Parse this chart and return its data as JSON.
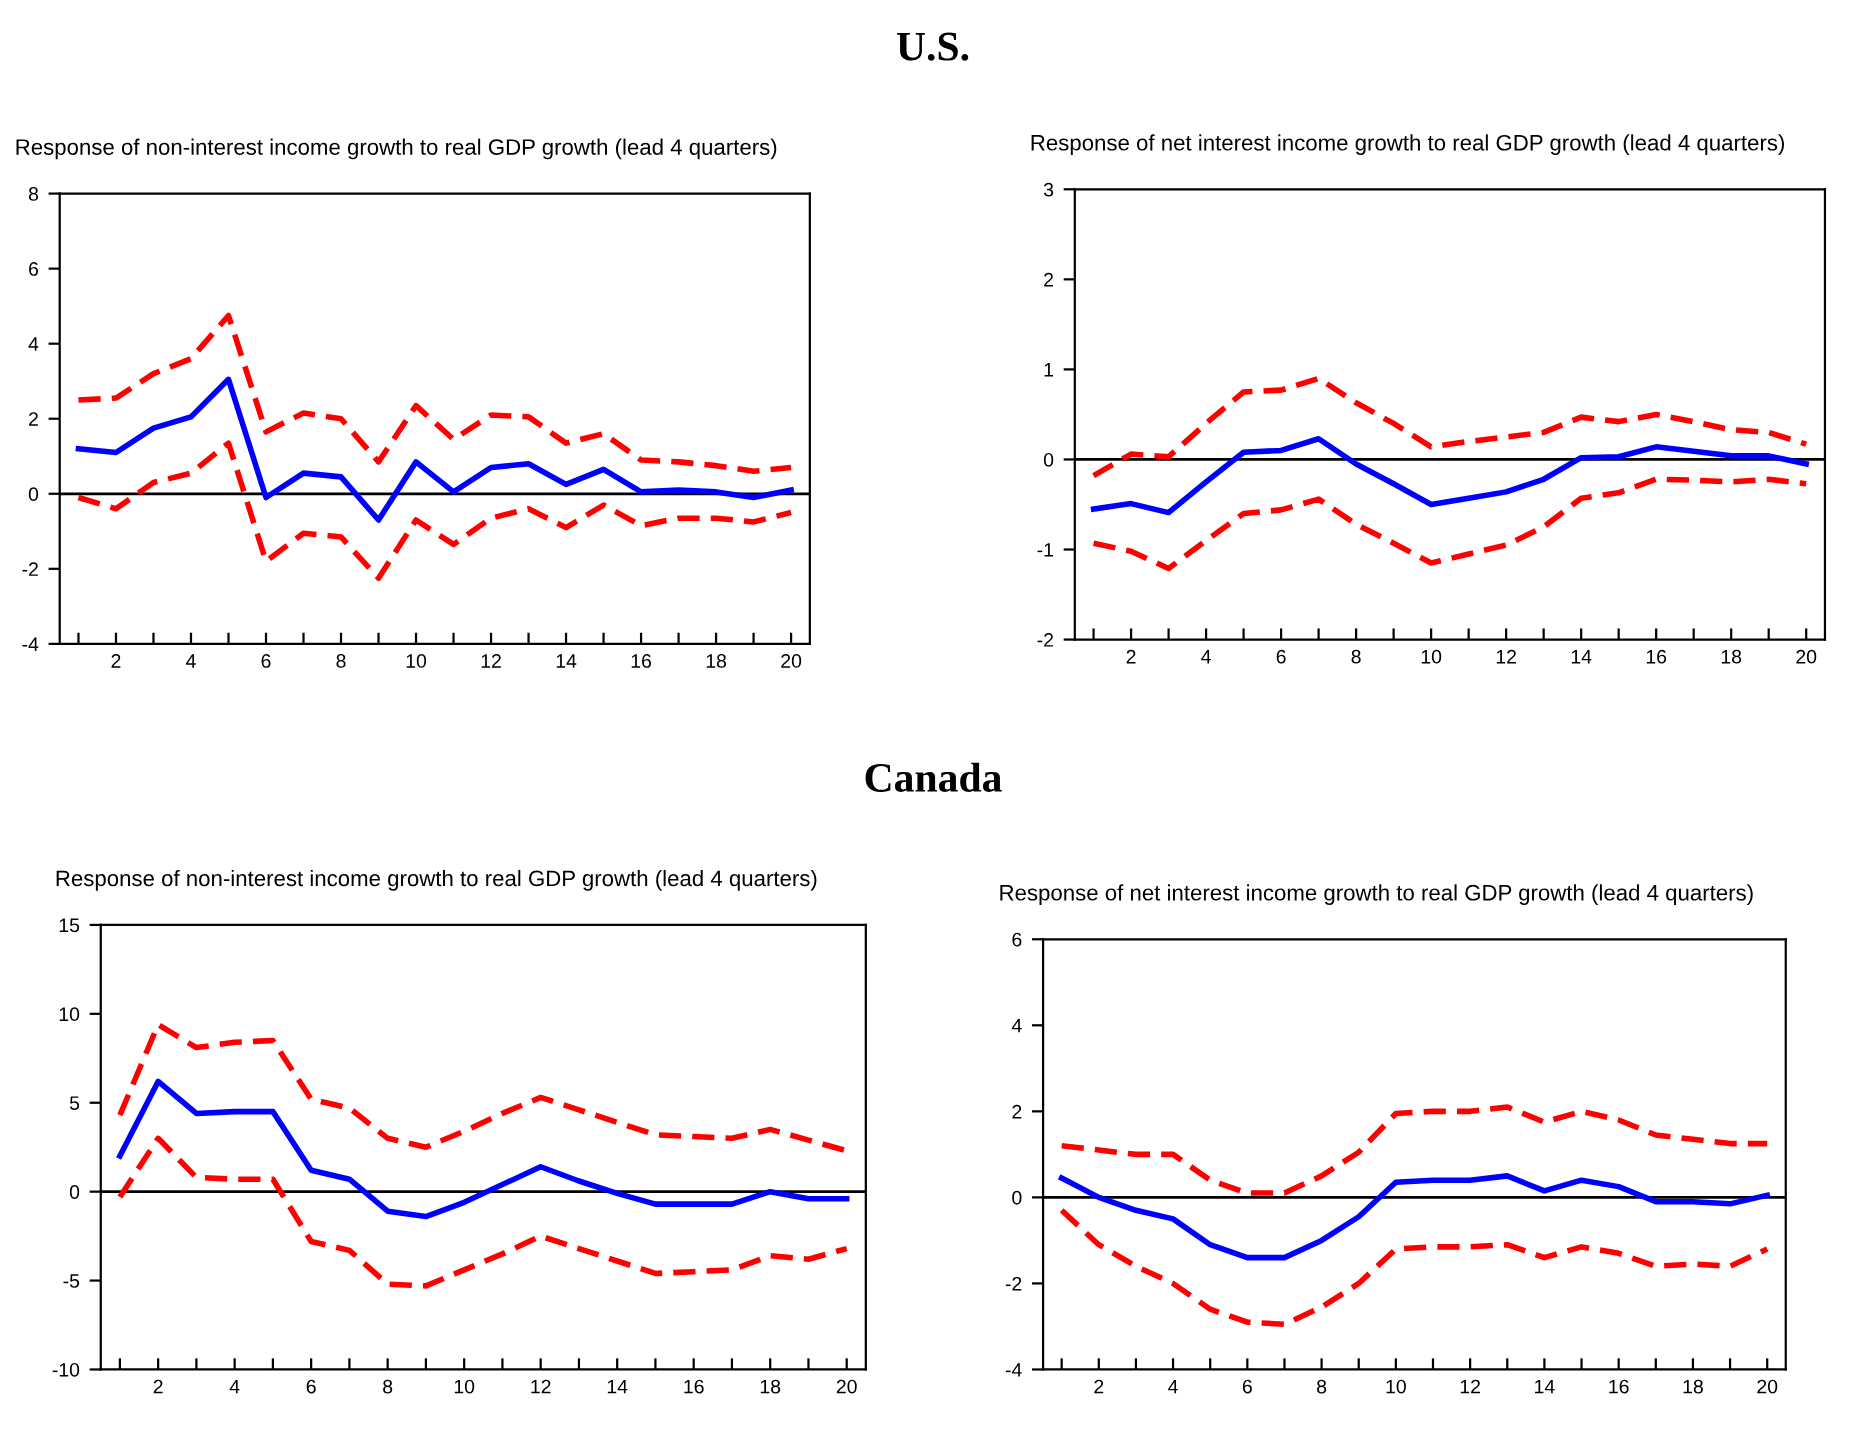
{
  "chart_data": [
    {
      "type": "line",
      "title": "Response of non-interest income growth to real GDP growth (lead 4 quarters)",
      "annotations": [
        "U.S."
      ],
      "x": [
        1,
        2,
        3,
        4,
        5,
        6,
        7,
        8,
        9,
        10,
        11,
        12,
        13,
        14,
        15,
        16,
        17,
        18,
        19,
        20
      ],
      "xlim": [
        0.5,
        20.5
      ],
      "xticks": [
        {
          "value": 1,
          "label": null
        },
        2,
        {
          "value": 3,
          "label": null
        },
        4,
        {
          "value": 5,
          "label": null
        },
        6,
        {
          "value": 7,
          "label": null
        },
        8,
        {
          "value": 9,
          "label": null
        },
        10,
        {
          "value": 11,
          "label": null
        },
        12,
        {
          "value": 13,
          "label": null
        },
        14,
        {
          "value": 15,
          "label": null
        },
        16,
        {
          "value": 17,
          "label": null
        },
        18,
        {
          "value": 19,
          "label": null
        },
        20
      ],
      "ylim": [
        -4,
        8
      ],
      "yticks": [
        -4,
        -2,
        0,
        2,
        4,
        6,
        8
      ],
      "grid": false,
      "legend": false,
      "ref_lines": [
        {
          "axis": "y",
          "value": 0,
          "color": "#000000",
          "line_style": "solid"
        }
      ],
      "series": [
        {
          "color": "#ff0000",
          "line_style": "dashed",
          "values": [
            2.5,
            2.55,
            3.2,
            3.6,
            4.75,
            1.65,
            2.15,
            2.0,
            0.85,
            2.35,
            1.45,
            2.1,
            2.05,
            1.35,
            1.6,
            0.9,
            0.85,
            0.75,
            0.6,
            0.7
          ]
        },
        {
          "color": "#0000ff",
          "line_style": "solid",
          "values": [
            1.2,
            1.1,
            1.75,
            2.05,
            3.05,
            -0.1,
            0.55,
            0.45,
            -0.7,
            0.85,
            0.05,
            0.7,
            0.8,
            0.25,
            0.65,
            0.05,
            0.1,
            0.05,
            -0.1,
            0.1
          ]
        },
        {
          "color": "#ff0000",
          "line_style": "dashed",
          "values": [
            -0.1,
            -0.4,
            0.3,
            0.55,
            1.35,
            -1.8,
            -1.05,
            -1.15,
            -2.25,
            -0.7,
            -1.35,
            -0.65,
            -0.4,
            -0.9,
            -0.3,
            -0.85,
            -0.65,
            -0.65,
            -0.75,
            -0.5
          ]
        }
      ]
    },
    {
      "type": "line",
      "title": "Response of net interest income growth to real GDP growth (lead 4 quarters)",
      "x": [
        1,
        2,
        3,
        4,
        5,
        6,
        7,
        8,
        9,
        10,
        11,
        12,
        13,
        14,
        15,
        16,
        17,
        18,
        19,
        20
      ],
      "xlim": [
        0.5,
        20.5
      ],
      "xticks": [
        {
          "value": 1,
          "label": null
        },
        2,
        {
          "value": 3,
          "label": null
        },
        4,
        {
          "value": 5,
          "label": null
        },
        6,
        {
          "value": 7,
          "label": null
        },
        8,
        {
          "value": 9,
          "label": null
        },
        10,
        {
          "value": 11,
          "label": null
        },
        12,
        {
          "value": 13,
          "label": null
        },
        14,
        {
          "value": 15,
          "label": null
        },
        16,
        {
          "value": 17,
          "label": null
        },
        18,
        {
          "value": 19,
          "label": null
        },
        20
      ],
      "ylim": [
        -2,
        3
      ],
      "yticks": [
        -2,
        -1,
        0,
        1,
        2,
        3
      ],
      "grid": false,
      "legend": false,
      "ref_lines": [
        {
          "axis": "y",
          "value": 0,
          "color": "#000000",
          "line_style": "solid"
        }
      ],
      "series": [
        {
          "color": "#ff0000",
          "line_style": "dashed",
          "values": [
            -0.18,
            0.06,
            0.03,
            0.4,
            0.75,
            0.77,
            0.9,
            0.63,
            0.4,
            0.14,
            0.2,
            0.25,
            0.3,
            0.47,
            0.42,
            0.5,
            0.42,
            0.33,
            0.3,
            0.17
          ]
        },
        {
          "color": "#0000ff",
          "line_style": "solid",
          "values": [
            -0.55,
            -0.49,
            -0.59,
            -0.25,
            0.08,
            0.1,
            0.23,
            -0.05,
            -0.27,
            -0.5,
            -0.43,
            -0.36,
            -0.22,
            0.02,
            0.03,
            0.14,
            0.09,
            0.04,
            0.04,
            -0.05
          ]
        },
        {
          "color": "#ff0000",
          "line_style": "dashed",
          "values": [
            -0.93,
            -1.02,
            -1.21,
            -0.9,
            -0.6,
            -0.56,
            -0.44,
            -0.72,
            -0.93,
            -1.15,
            -1.05,
            -0.95,
            -0.75,
            -0.43,
            -0.37,
            -0.22,
            -0.23,
            -0.25,
            -0.22,
            -0.27
          ]
        }
      ]
    },
    {
      "type": "line",
      "title": "Response of non-interest income growth to real GDP growth (lead 4 quarters)",
      "annotations": [
        "Canada"
      ],
      "x": [
        1,
        2,
        3,
        4,
        5,
        6,
        7,
        8,
        9,
        10,
        11,
        12,
        13,
        14,
        15,
        16,
        17,
        18,
        19,
        20
      ],
      "xlim": [
        0.5,
        20.5
      ],
      "xticks": [
        {
          "value": 1,
          "label": null
        },
        2,
        {
          "value": 3,
          "label": null
        },
        4,
        {
          "value": 5,
          "label": null
        },
        6,
        {
          "value": 7,
          "label": null
        },
        8,
        {
          "value": 9,
          "label": null
        },
        10,
        {
          "value": 11,
          "label": null
        },
        12,
        {
          "value": 13,
          "label": null
        },
        14,
        {
          "value": 15,
          "label": null
        },
        16,
        {
          "value": 17,
          "label": null
        },
        18,
        {
          "value": 19,
          "label": null
        },
        20
      ],
      "ylim": [
        -10,
        15
      ],
      "yticks": [
        -10,
        -5,
        0,
        5,
        10,
        15
      ],
      "grid": false,
      "legend": false,
      "ref_lines": [
        {
          "axis": "y",
          "value": 0,
          "color": "#000000",
          "line_style": "solid"
        }
      ],
      "series": [
        {
          "color": "#ff0000",
          "line_style": "dashed",
          "values": [
            4.3,
            9.4,
            8.1,
            8.4,
            8.5,
            5.2,
            4.7,
            3.0,
            2.5,
            3.4,
            4.4,
            5.3,
            4.6,
            3.9,
            3.2,
            3.1,
            3.0,
            3.5,
            2.9,
            2.3
          ]
        },
        {
          "color": "#0000ff",
          "line_style": "solid",
          "values": [
            2.0,
            6.2,
            4.4,
            4.5,
            4.5,
            1.2,
            0.7,
            -1.1,
            -1.4,
            -0.6,
            0.4,
            1.4,
            0.6,
            -0.1,
            -0.7,
            -0.7,
            -0.7,
            0.0,
            -0.4,
            -0.4
          ]
        },
        {
          "color": "#ff0000",
          "line_style": "dashed",
          "values": [
            -0.3,
            3.0,
            0.8,
            0.7,
            0.7,
            -2.8,
            -3.3,
            -5.2,
            -5.3,
            -4.4,
            -3.5,
            -2.5,
            -3.2,
            -3.9,
            -4.6,
            -4.5,
            -4.4,
            -3.6,
            -3.8,
            -3.2
          ]
        }
      ]
    },
    {
      "type": "line",
      "title": "Response of net interest income growth to real GDP growth (lead 4 quarters)",
      "x": [
        1,
        2,
        3,
        4,
        5,
        6,
        7,
        8,
        9,
        10,
        11,
        12,
        13,
        14,
        15,
        16,
        17,
        18,
        19,
        20
      ],
      "xlim": [
        0.5,
        20.5
      ],
      "xticks": [
        {
          "value": 1,
          "label": null
        },
        2,
        {
          "value": 3,
          "label": null
        },
        4,
        {
          "value": 5,
          "label": null
        },
        6,
        {
          "value": 7,
          "label": null
        },
        8,
        {
          "value": 9,
          "label": null
        },
        10,
        {
          "value": 11,
          "label": null
        },
        12,
        {
          "value": 13,
          "label": null
        },
        14,
        {
          "value": 15,
          "label": null
        },
        16,
        {
          "value": 17,
          "label": null
        },
        18,
        {
          "value": 19,
          "label": null
        },
        20
      ],
      "ylim": [
        -4,
        6
      ],
      "yticks": [
        -4,
        -2,
        0,
        2,
        4,
        6
      ],
      "grid": false,
      "legend": false,
      "ref_lines": [
        {
          "axis": "y",
          "value": 0,
          "color": "#000000",
          "line_style": "solid"
        }
      ],
      "series": [
        {
          "color": "#ff0000",
          "line_style": "dashed",
          "values": [
            1.2,
            1.1,
            1.0,
            1.0,
            0.4,
            0.1,
            0.1,
            0.5,
            1.05,
            1.95,
            2.0,
            2.0,
            2.1,
            1.75,
            2.0,
            1.8,
            1.45,
            1.35,
            1.25,
            1.25
          ]
        },
        {
          "color": "#0000ff",
          "line_style": "solid",
          "values": [
            0.45,
            0.0,
            -0.3,
            -0.5,
            -1.1,
            -1.4,
            -1.4,
            -1.0,
            -0.45,
            0.35,
            0.4,
            0.4,
            0.5,
            0.15,
            0.4,
            0.25,
            -0.1,
            -0.1,
            -0.15,
            0.05
          ]
        },
        {
          "color": "#ff0000",
          "line_style": "dashed",
          "values": [
            -0.3,
            -1.1,
            -1.6,
            -2.0,
            -2.6,
            -2.9,
            -2.95,
            -2.55,
            -2.0,
            -1.2,
            -1.15,
            -1.15,
            -1.1,
            -1.4,
            -1.15,
            -1.3,
            -1.6,
            -1.55,
            -1.6,
            -1.2
          ]
        }
      ]
    }
  ]
}
